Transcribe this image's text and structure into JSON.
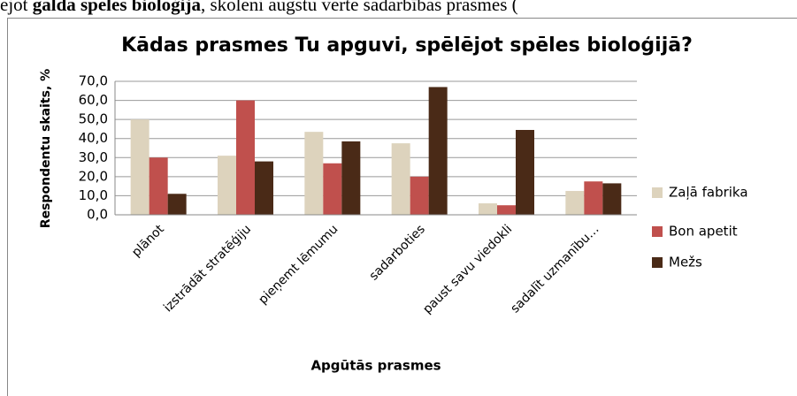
{
  "page_text": {
    "parts": [
      "ējot ",
      "galda spēles bioloģija",
      ", skolēni augstu vērtē sadarbības prasmes ("
    ]
  },
  "chart_data": {
    "type": "bar",
    "title": "Kādas prasmes Tu apguvi, spēlējot spēles bioloģijā?",
    "y_label": "Respondentu skaits, %",
    "x_label": "Apgūtās prasmes",
    "categories": [
      "plānot",
      "izstrādāt stratēģiju",
      "pieņemt lēmumu",
      "sadarboties",
      "paust savu viedokli",
      "sadalīt uzmanību…"
    ],
    "series": [
      {
        "name": "Zaļā fabrika",
        "color": "#ddd3bd",
        "values": [
          50,
          31,
          43.5,
          37.5,
          6,
          12.5
        ]
      },
      {
        "name": "Bon apetit",
        "color": "#c0504d",
        "values": [
          30,
          60,
          27,
          20,
          5,
          17.5
        ]
      },
      {
        "name": "Mežs",
        "color": "#4a2a17",
        "values": [
          11,
          28,
          38.5,
          67,
          44.5,
          16.5
        ]
      }
    ],
    "ylim": [
      0,
      70
    ],
    "yticks": [
      {
        "value": 0,
        "label": "0,0"
      },
      {
        "value": 10,
        "label": "10,0"
      },
      {
        "value": 20,
        "label": "20,0"
      },
      {
        "value": 30,
        "label": "30,0"
      },
      {
        "value": 40,
        "label": "40,0"
      },
      {
        "value": 50,
        "label": "50,0"
      },
      {
        "value": 60,
        "label": "60,0"
      },
      {
        "value": 70,
        "label": "70,0"
      }
    ],
    "grid": true,
    "legend": "right"
  }
}
